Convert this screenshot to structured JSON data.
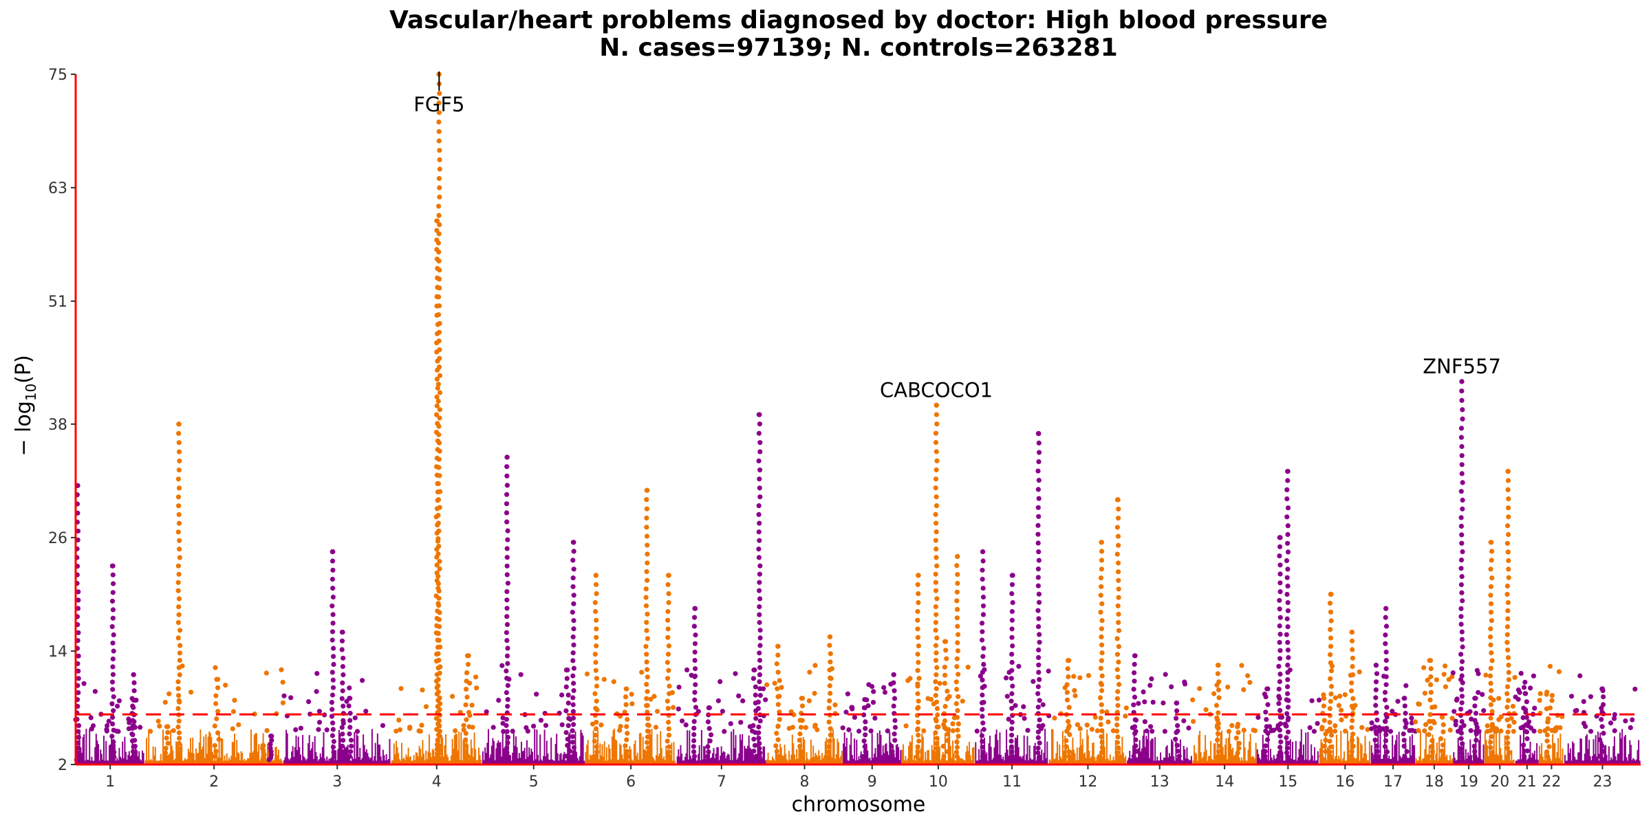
{
  "chart_data": {
    "type": "scatter",
    "subtype": "manhattan",
    "title": "Vascular/heart problems diagnosed by doctor: High blood pressure",
    "subtitle": "N. cases=97139; N. controls=263281",
    "xlabel": "chromosome",
    "ylabel_text": "− log",
    "ylabel_sub": "10",
    "ylabel_rest": "(P)",
    "ylim": [
      2,
      75
    ],
    "yticks": [
      2,
      14,
      26,
      38,
      51,
      63,
      75
    ],
    "significance_threshold": 7.3,
    "colors": {
      "odd": "#8B008B",
      "even": "#EE7600",
      "axis": "#FF0000",
      "threshold": "#FF0000"
    },
    "chromosomes": [
      {
        "label": "1",
        "start": 0,
        "end": 141,
        "peaks": [
          [
            4,
            31.5
          ],
          [
            76,
            23
          ],
          [
            118,
            11.5
          ],
          [
            118.6,
            8.8
          ]
        ]
      },
      {
        "label": "2",
        "start": 141,
        "end": 424,
        "peaks": [
          [
            211,
            38
          ],
          [
            188,
            6
          ],
          [
            288,
            11
          ],
          [
            382,
            4
          ]
        ]
      },
      {
        "label": "3",
        "start": 424,
        "end": 644,
        "peaks": [
          [
            525,
            24.5
          ],
          [
            400,
            5
          ],
          [
            545,
            16
          ],
          [
            560,
            9
          ]
        ]
      },
      {
        "label": "4",
        "start": 644,
        "end": 830,
        "peaks": [
          [
            742,
            75
          ],
          [
            738,
            59.5
          ],
          [
            800,
            13.5
          ]
        ]
      },
      {
        "label": "5",
        "start": 830,
        "end": 1040,
        "peaks": [
          [
            881,
            34.5
          ],
          [
            1016,
            25.5
          ],
          [
            1004,
            12
          ]
        ]
      },
      {
        "label": "6",
        "start": 1040,
        "end": 1227,
        "peaks": [
          [
            1062,
            22
          ],
          [
            1166,
            31
          ],
          [
            1210,
            22
          ],
          [
            1124,
            10
          ]
        ]
      },
      {
        "label": "7",
        "start": 1227,
        "end": 1410,
        "peaks": [
          [
            1264,
            18.5
          ],
          [
            1386,
            12
          ],
          [
            1396,
            39
          ],
          [
            1294,
            8
          ]
        ]
      },
      {
        "label": "8",
        "start": 1410,
        "end": 1566,
        "peaks": [
          [
            1434,
            14.5
          ],
          [
            1540,
            15.5
          ],
          [
            1482,
            9
          ]
        ]
      },
      {
        "label": "9",
        "start": 1566,
        "end": 1686,
        "peaks": [
          [
            1610,
            8
          ],
          [
            1670,
            11.5
          ]
        ]
      },
      {
        "label": "10",
        "start": 1686,
        "end": 1836,
        "peaks": [
          [
            1720,
            22
          ],
          [
            1757,
            40
          ],
          [
            1800,
            24
          ],
          [
            1776,
            15
          ]
        ]
      },
      {
        "label": "11",
        "start": 1836,
        "end": 1987,
        "peaks": [
          [
            1852,
            24.5
          ],
          [
            1912,
            22
          ],
          [
            1966,
            37
          ]
        ]
      },
      {
        "label": "12",
        "start": 1987,
        "end": 2146,
        "peaks": [
          [
            2094,
            25.5
          ],
          [
            2128,
            30
          ],
          [
            2026,
            13
          ]
        ]
      },
      {
        "label": "13",
        "start": 2146,
        "end": 2280,
        "peaks": [
          [
            2162,
            13.5
          ],
          [
            2248,
            8.5
          ]
        ]
      },
      {
        "label": "14",
        "start": 2280,
        "end": 2411,
        "peaks": [
          [
            2332,
            12.5
          ],
          [
            2372,
            6
          ]
        ]
      },
      {
        "label": "15",
        "start": 2411,
        "end": 2539,
        "peaks": [
          [
            2474,
            33
          ],
          [
            2432,
            10
          ],
          [
            2458,
            26
          ]
        ]
      },
      {
        "label": "16",
        "start": 2539,
        "end": 2644,
        "peaks": [
          [
            2562,
            20
          ],
          [
            2606,
            16
          ],
          [
            2548,
            9
          ]
        ]
      },
      {
        "label": "17",
        "start": 2644,
        "end": 2735,
        "peaks": [
          [
            2675,
            18.5
          ],
          [
            2655,
            12.5
          ],
          [
            2713,
            9
          ]
        ]
      },
      {
        "label": "18",
        "start": 2735,
        "end": 2812,
        "peaks": [
          [
            2766,
            13
          ],
          [
            2790,
            7
          ]
        ]
      },
      {
        "label": "19",
        "start": 2812,
        "end": 2876,
        "peaks": [
          [
            2830,
            42.5
          ],
          [
            2858,
            9
          ]
        ]
      },
      {
        "label": "20",
        "start": 2876,
        "end": 2939,
        "peaks": [
          [
            2890,
            25.5
          ],
          [
            2924,
            33
          ]
        ]
      },
      {
        "label": "21",
        "start": 2939,
        "end": 2987,
        "peaks": [
          [
            2960,
            9.5
          ]
        ]
      },
      {
        "label": "22",
        "start": 2987,
        "end": 3039,
        "peaks": [
          [
            3005,
            6.5
          ]
        ]
      },
      {
        "label": "23",
        "start": 3039,
        "end": 3195,
        "peaks": [
          [
            3116,
            10
          ]
        ]
      }
    ],
    "annotations": [
      {
        "text": "FGF5",
        "x": 742,
        "y": 75
      },
      {
        "text": "CABCOCO1",
        "x": 1757,
        "y": 40
      },
      {
        "text": "ZNF557",
        "x": 2830,
        "y": 42.5
      }
    ]
  }
}
